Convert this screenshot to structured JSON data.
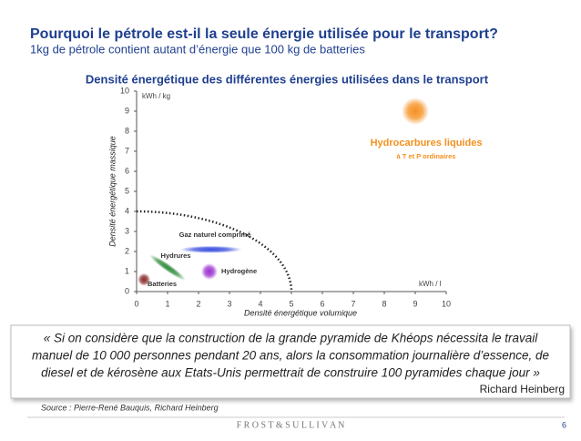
{
  "slide": {
    "title": "Pourquoi le pétrole est-il la seule énergie utilisée pour le transport?",
    "subtitle": "1kg de pétrole contient autant d’énergie que 100 kg de batteries",
    "quote": {
      "lines": [
        "« Si on considère que la construction de la grande pyramide de Khéops nécessita le travail",
        "manuel de 10 000 personnes pendant 20 ans, alors la consommation journalière d’essence, de",
        "diesel et de kérosène aux Etats-Unis permettrait de construire 100 pyramides chaque jour »"
      ],
      "author": "Richard Heinberg"
    },
    "source": "Source : Pierre-René Bauquis, Richard Heinberg",
    "brand": "F R O S T  &  S U L L I V A N",
    "page": "6"
  },
  "chart_data": {
    "type": "scatter",
    "title": "Densité énergétique des différentes énergies utilisées dans le transport",
    "x_label": "Densité énergétique volumique",
    "y_label": "Densité énergétique massique",
    "x_unit": "kWh / l",
    "y_unit": "kWh / kg",
    "xlim": [
      0,
      10
    ],
    "ylim": [
      0,
      10
    ],
    "xticks": [
      0,
      1,
      2,
      3,
      4,
      5,
      6,
      7,
      8,
      9,
      10
    ],
    "yticks": [
      0,
      1,
      2,
      3,
      4,
      5,
      6,
      7,
      8,
      9,
      10
    ],
    "boundary": {
      "x": 5,
      "y": 4
    },
    "note": "à T et P ordinaires",
    "series": [
      {
        "name": "Hydrocarbures liquides",
        "color": "#f5901e",
        "x": 9.0,
        "y": 9.0
      },
      {
        "name": "Gaz naturel comprimé",
        "color": "#3a4ee0",
        "x": 2.4,
        "y": 2.1
      },
      {
        "name": "Hydrures",
        "color": "#2e8b3a",
        "x": 1.0,
        "y": 1.2
      },
      {
        "name": "Hydrogène",
        "color": "#9b30d0",
        "x": 2.35,
        "y": 1.0
      },
      {
        "name": "Batteries",
        "color": "#8b2a2a",
        "x": 0.24,
        "y": 0.6
      }
    ]
  }
}
